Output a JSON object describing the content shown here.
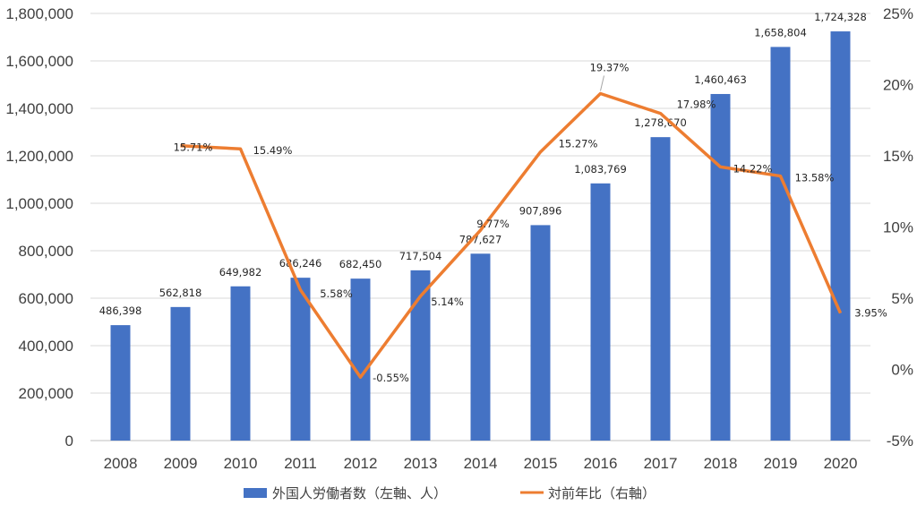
{
  "chart_data": {
    "type": "bar+line",
    "categories": [
      "2008",
      "2009",
      "2010",
      "2011",
      "2012",
      "2013",
      "2014",
      "2015",
      "2016",
      "2017",
      "2018",
      "2019",
      "2020"
    ],
    "series": [
      {
        "name": "外国人労働者数（左軸、人）",
        "type": "bar",
        "axis": "left",
        "color": "#4472C4",
        "values": [
          486398,
          562818,
          649982,
          686246,
          682450,
          717504,
          787627,
          907896,
          1083769,
          1278670,
          1460463,
          1658804,
          1724328
        ],
        "labels": [
          "486,398",
          "562,818",
          "649,982",
          "686,246",
          "682,450",
          "717,504",
          "787,627",
          "907,896",
          "1,083,769",
          "1,278,670",
          "1,460,463",
          "1,658,804",
          "1,724,328"
        ]
      },
      {
        "name": "対前年比（右軸）",
        "type": "line",
        "axis": "right",
        "color": "#ED7D31",
        "values": [
          null,
          15.71,
          15.49,
          5.58,
          -0.55,
          5.14,
          9.77,
          15.27,
          19.37,
          17.98,
          14.22,
          13.58,
          3.95
        ],
        "labels": [
          "",
          "15.71%",
          "15.49%",
          "5.58%",
          "-0.55%",
          "5.14%",
          "9.77%",
          "15.27%",
          "19.37%",
          "17.98%",
          "14.22%",
          "13.58%",
          "3.95%"
        ]
      }
    ],
    "left_axis": {
      "ylim": [
        0,
        1800000
      ],
      "ticks": [
        0,
        200000,
        400000,
        600000,
        800000,
        1000000,
        1200000,
        1400000,
        1600000,
        1800000
      ],
      "tick_labels": [
        "0",
        "200,000",
        "400,000",
        "600,000",
        "800,000",
        "1,000,000",
        "1,200,000",
        "1,400,000",
        "1,600,000",
        "1,800,000"
      ]
    },
    "right_axis": {
      "ylim": [
        -5,
        25
      ],
      "ticks": [
        -5,
        0,
        5,
        10,
        15,
        20,
        25
      ],
      "tick_labels": [
        "-5%",
        "0%",
        "5%",
        "10%",
        "15%",
        "20%",
        "25%"
      ]
    },
    "legend": "bottom-center",
    "grid": true
  }
}
